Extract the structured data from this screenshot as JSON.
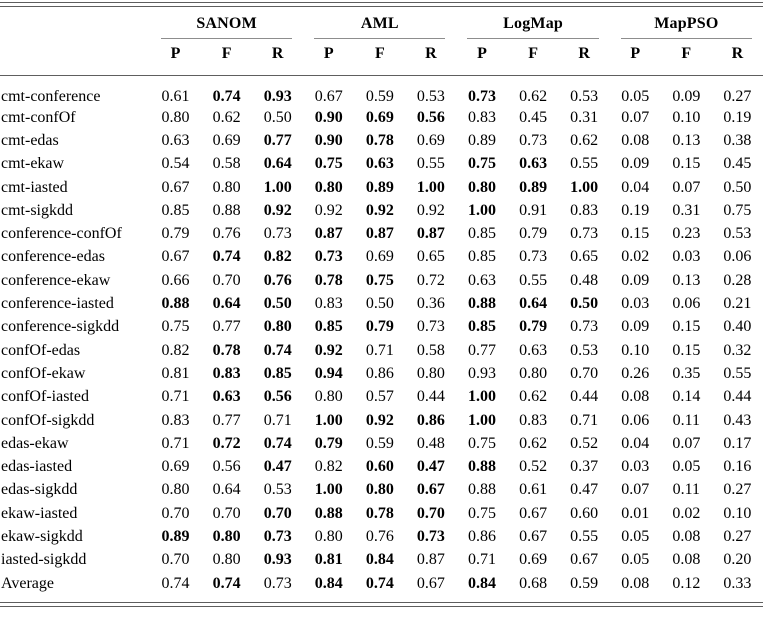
{
  "colors": {
    "background": "#ffffff",
    "text": "#000000",
    "main_rule": "#5e5e5e",
    "group_rule": "#8d8d8d"
  },
  "table": {
    "groups": [
      {
        "name": "SANOM"
      },
      {
        "name": "AML"
      },
      {
        "name": "LogMap"
      },
      {
        "name": "MapPSO"
      }
    ],
    "metrics": [
      "P",
      "F",
      "R"
    ],
    "rows": [
      {
        "label": "cmt-conference",
        "values": [
          "0.61",
          "0.74",
          "0.93",
          "0.67",
          "0.59",
          "0.53",
          "0.73",
          "0.62",
          "0.53",
          "0.05",
          "0.09",
          "0.27"
        ],
        "bold": [
          1,
          2,
          6
        ]
      },
      {
        "label": "cmt-confOf",
        "values": [
          "0.80",
          "0.62",
          "0.50",
          "0.90",
          "0.69",
          "0.56",
          "0.83",
          "0.45",
          "0.31",
          "0.07",
          "0.10",
          "0.19"
        ],
        "bold": [
          3,
          4,
          5
        ]
      },
      {
        "label": "cmt-edas",
        "values": [
          "0.63",
          "0.69",
          "0.77",
          "0.90",
          "0.78",
          "0.69",
          "0.89",
          "0.73",
          "0.62",
          "0.08",
          "0.13",
          "0.38"
        ],
        "bold": [
          2,
          3,
          4
        ]
      },
      {
        "label": "cmt-ekaw",
        "values": [
          "0.54",
          "0.58",
          "0.64",
          "0.75",
          "0.63",
          "0.55",
          "0.75",
          "0.63",
          "0.55",
          "0.09",
          "0.15",
          "0.45"
        ],
        "bold": [
          2,
          3,
          4,
          6,
          7
        ]
      },
      {
        "label": "cmt-iasted",
        "values": [
          "0.67",
          "0.80",
          "1.00",
          "0.80",
          "0.89",
          "1.00",
          "0.80",
          "0.89",
          "1.00",
          "0.04",
          "0.07",
          "0.50"
        ],
        "bold": [
          2,
          3,
          4,
          5,
          6,
          7,
          8
        ]
      },
      {
        "label": "cmt-sigkdd",
        "values": [
          "0.85",
          "0.88",
          "0.92",
          "0.92",
          "0.92",
          "0.92",
          "1.00",
          "0.91",
          "0.83",
          "0.19",
          "0.31",
          "0.75"
        ],
        "bold": [
          2,
          4,
          6
        ]
      },
      {
        "label": "conference-confOf",
        "values": [
          "0.79",
          "0.76",
          "0.73",
          "0.87",
          "0.87",
          "0.87",
          "0.85",
          "0.79",
          "0.73",
          "0.15",
          "0.23",
          "0.53"
        ],
        "bold": [
          3,
          4,
          5
        ]
      },
      {
        "label": "conference-edas",
        "values": [
          "0.67",
          "0.74",
          "0.82",
          "0.73",
          "0.69",
          "0.65",
          "0.85",
          "0.73",
          "0.65",
          "0.02",
          "0.03",
          "0.06"
        ],
        "bold": [
          1,
          2,
          3
        ]
      },
      {
        "label": "conference-ekaw",
        "values": [
          "0.66",
          "0.70",
          "0.76",
          "0.78",
          "0.75",
          "0.72",
          "0.63",
          "0.55",
          "0.48",
          "0.09",
          "0.13",
          "0.28"
        ],
        "bold": [
          2,
          3,
          4
        ]
      },
      {
        "label": "conference-iasted",
        "values": [
          "0.88",
          "0.64",
          "0.50",
          "0.83",
          "0.50",
          "0.36",
          "0.88",
          "0.64",
          "0.50",
          "0.03",
          "0.06",
          "0.21"
        ],
        "bold": [
          0,
          1,
          2,
          6,
          7,
          8
        ]
      },
      {
        "label": "conference-sigkdd",
        "values": [
          "0.75",
          "0.77",
          "0.80",
          "0.85",
          "0.79",
          "0.73",
          "0.85",
          "0.79",
          "0.73",
          "0.09",
          "0.15",
          "0.40"
        ],
        "bold": [
          2,
          3,
          4,
          6,
          7
        ]
      },
      {
        "label": "confOf-edas",
        "values": [
          "0.82",
          "0.78",
          "0.74",
          "0.92",
          "0.71",
          "0.58",
          "0.77",
          "0.63",
          "0.53",
          "0.10",
          "0.15",
          "0.32"
        ],
        "bold": [
          1,
          2,
          3
        ]
      },
      {
        "label": "confOf-ekaw",
        "values": [
          "0.81",
          "0.83",
          "0.85",
          "0.94",
          "0.86",
          "0.80",
          "0.93",
          "0.80",
          "0.70",
          "0.26",
          "0.35",
          "0.55"
        ],
        "bold": [
          1,
          2,
          3
        ]
      },
      {
        "label": "confOf-iasted",
        "values": [
          "0.71",
          "0.63",
          "0.56",
          "0.80",
          "0.57",
          "0.44",
          "1.00",
          "0.62",
          "0.44",
          "0.08",
          "0.14",
          "0.44"
        ],
        "bold": [
          1,
          2,
          6
        ]
      },
      {
        "label": "confOf-sigkdd",
        "values": [
          "0.83",
          "0.77",
          "0.71",
          "1.00",
          "0.92",
          "0.86",
          "1.00",
          "0.83",
          "0.71",
          "0.06",
          "0.11",
          "0.43"
        ],
        "bold": [
          3,
          4,
          5,
          6
        ]
      },
      {
        "label": "edas-ekaw",
        "values": [
          "0.71",
          "0.72",
          "0.74",
          "0.79",
          "0.59",
          "0.48",
          "0.75",
          "0.62",
          "0.52",
          "0.04",
          "0.07",
          "0.17"
        ],
        "bold": [
          1,
          2,
          3
        ]
      },
      {
        "label": "edas-iasted",
        "values": [
          "0.69",
          "0.56",
          "0.47",
          "0.82",
          "0.60",
          "0.47",
          "0.88",
          "0.52",
          "0.37",
          "0.03",
          "0.05",
          "0.16"
        ],
        "bold": [
          2,
          4,
          5,
          6
        ]
      },
      {
        "label": "edas-sigkdd",
        "values": [
          "0.80",
          "0.64",
          "0.53",
          "1.00",
          "0.80",
          "0.67",
          "0.88",
          "0.61",
          "0.47",
          "0.07",
          "0.11",
          "0.27"
        ],
        "bold": [
          3,
          4,
          5
        ]
      },
      {
        "label": "ekaw-iasted",
        "values": [
          "0.70",
          "0.70",
          "0.70",
          "0.88",
          "0.78",
          "0.70",
          "0.75",
          "0.67",
          "0.60",
          "0.01",
          "0.02",
          "0.10"
        ],
        "bold": [
          2,
          3,
          4,
          5
        ]
      },
      {
        "label": "ekaw-sigkdd",
        "values": [
          "0.89",
          "0.80",
          "0.73",
          "0.80",
          "0.76",
          "0.73",
          "0.86",
          "0.67",
          "0.55",
          "0.05",
          "0.08",
          "0.27"
        ],
        "bold": [
          0,
          1,
          2,
          5
        ]
      },
      {
        "label": "iasted-sigkdd",
        "values": [
          "0.70",
          "0.80",
          "0.93",
          "0.81",
          "0.84",
          "0.87",
          "0.71",
          "0.69",
          "0.67",
          "0.05",
          "0.08",
          "0.20"
        ],
        "bold": [
          2,
          3,
          4
        ]
      },
      {
        "label": "Average",
        "values": [
          "0.74",
          "0.74",
          "0.73",
          "0.84",
          "0.74",
          "0.67",
          "0.84",
          "0.68",
          "0.59",
          "0.08",
          "0.12",
          "0.33"
        ],
        "bold": [
          1,
          3,
          4,
          6
        ]
      }
    ]
  }
}
